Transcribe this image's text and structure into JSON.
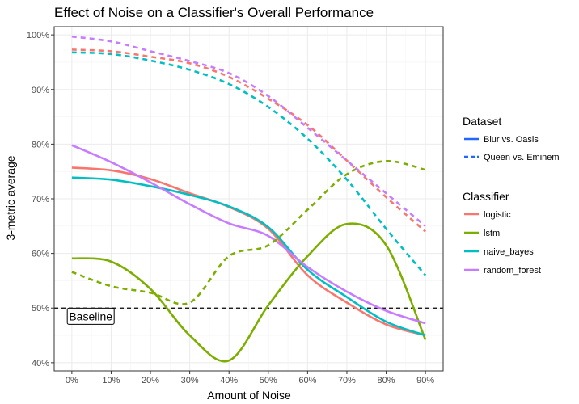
{
  "chart_data": {
    "type": "line",
    "title": "Effect of Noise on a Classifier's Overall Performance",
    "xlabel": "Amount of Noise",
    "ylabel": "3-metric average",
    "x_ticks": [
      "0%",
      "10%",
      "20%",
      "30%",
      "40%",
      "50%",
      "60%",
      "70%",
      "80%",
      "90%"
    ],
    "y_ticks": [
      "40%",
      "50%",
      "60%",
      "70%",
      "80%",
      "90%",
      "100%"
    ],
    "xlim": [
      -0.045,
      0.945
    ],
    "ylim": [
      38.5,
      101.5
    ],
    "grid": true,
    "legend_position": "right",
    "legends": [
      {
        "title": "Dataset",
        "entries": [
          {
            "label": "Blur vs. Oasis",
            "dash": "solid"
          },
          {
            "label": "Queen vs. Eminem",
            "dash": "dashed"
          }
        ]
      },
      {
        "title": "Classifier",
        "entries": [
          {
            "label": "logistic",
            "color": "#F8766D"
          },
          {
            "label": "lstm",
            "color": "#7CAE00"
          },
          {
            "label": "naive_bayes",
            "color": "#00BFC4"
          },
          {
            "label": "random_forest",
            "color": "#C77CFF"
          }
        ]
      }
    ],
    "baseline": {
      "y": 50,
      "label": "Baseline"
    },
    "x": [
      0,
      0.1,
      0.2,
      0.3,
      0.4,
      0.5,
      0.6,
      0.7,
      0.8,
      0.9
    ],
    "series": [
      {
        "classifier": "logistic",
        "dataset": "Blur vs. Oasis",
        "color": "#F8766D",
        "dash": "solid",
        "values": [
          75.7,
          75.2,
          73.6,
          71.0,
          68.5,
          64.5,
          56.0,
          51.0,
          47.0,
          45.0
        ]
      },
      {
        "classifier": "lstm",
        "dataset": "Blur vs. Oasis",
        "color": "#7CAE00",
        "dash": "solid",
        "values": [
          59.1,
          58.5,
          53.5,
          45.0,
          40.4,
          50.5,
          59.5,
          65.4,
          61.5,
          44.2
        ]
      },
      {
        "classifier": "naive_bayes",
        "dataset": "Blur vs. Oasis",
        "color": "#00BFC4",
        "dash": "solid",
        "values": [
          73.9,
          73.5,
          72.3,
          70.7,
          68.6,
          64.8,
          57.0,
          52.0,
          47.5,
          45.0
        ]
      },
      {
        "classifier": "random_forest",
        "dataset": "Blur vs. Oasis",
        "color": "#C77CFF",
        "dash": "solid",
        "values": [
          79.8,
          76.7,
          73.0,
          69.0,
          65.5,
          63.2,
          57.5,
          53.0,
          49.5,
          47.2
        ]
      },
      {
        "classifier": "logistic",
        "dataset": "Queen vs. Eminem",
        "color": "#F8766D",
        "dash": "dashed",
        "values": [
          97.3,
          97.0,
          96.0,
          94.8,
          92.3,
          88.3,
          83.5,
          77.0,
          70.3,
          64.0
        ]
      },
      {
        "classifier": "lstm",
        "dataset": "Queen vs. Eminem",
        "color": "#7CAE00",
        "dash": "dashed",
        "values": [
          56.6,
          54.0,
          52.8,
          51.0,
          59.5,
          61.5,
          68.0,
          74.5,
          76.9,
          75.3
        ]
      },
      {
        "classifier": "naive_bayes",
        "dataset": "Queen vs. Eminem",
        "color": "#00BFC4",
        "dash": "dashed",
        "values": [
          96.8,
          96.5,
          95.3,
          93.6,
          91.0,
          86.8,
          81.0,
          73.5,
          64.5,
          56.0
        ]
      },
      {
        "classifier": "random_forest",
        "dataset": "Queen vs. Eminem",
        "color": "#C77CFF",
        "dash": "dashed",
        "values": [
          99.7,
          98.8,
          97.0,
          95.2,
          93.0,
          88.8,
          83.0,
          77.0,
          71.0,
          65.0
        ]
      }
    ]
  }
}
